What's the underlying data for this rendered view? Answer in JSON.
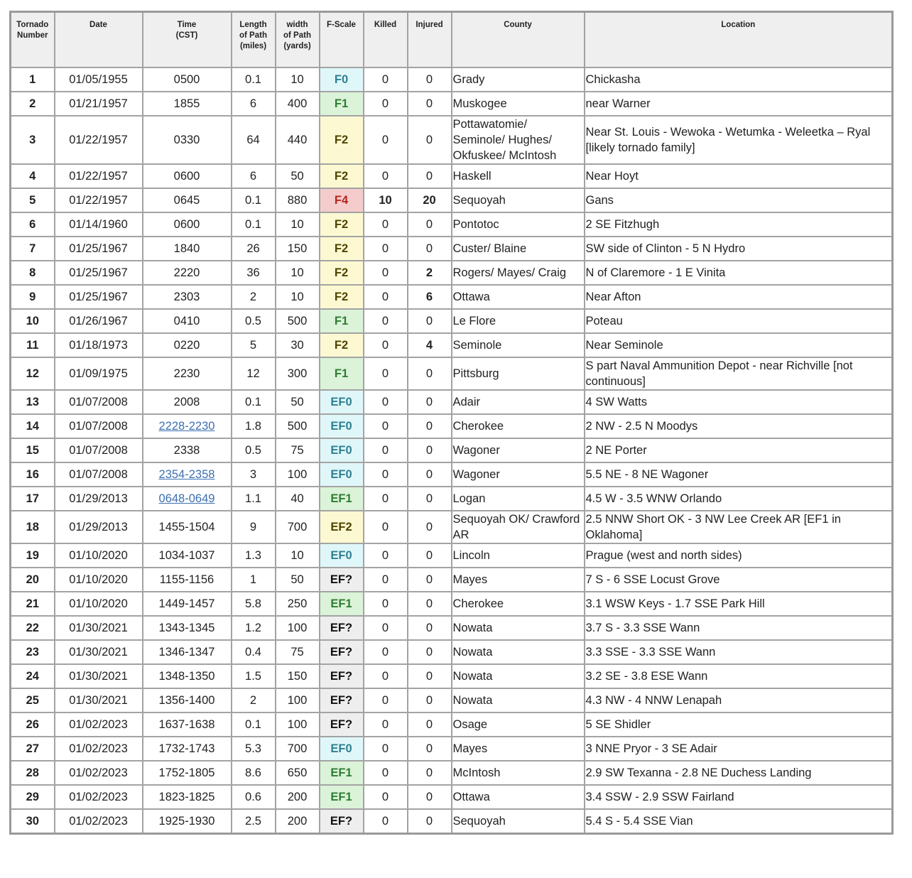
{
  "headers": [
    "Tornado Number",
    "Date",
    "Time (CST)",
    "Length of Path (miles)",
    "width of Path (yards)",
    "F-Scale",
    "Killed",
    "Injured",
    "County",
    "Location"
  ],
  "header_lines": [
    [
      "Tornado",
      "Number"
    ],
    [
      "Date"
    ],
    [
      "Time",
      "(CST)"
    ],
    [
      "Length",
      "of Path",
      "(miles)"
    ],
    [
      "width",
      "of Path",
      "(yards)"
    ],
    [
      "F-Scale"
    ],
    [
      "Killed"
    ],
    [
      "Injured"
    ],
    [
      "County"
    ],
    [
      "Location"
    ]
  ],
  "scale_colors": {
    "F0": {
      "bg": "#e0f7fa",
      "fg": "#2f8090"
    },
    "EF0": {
      "bg": "#e0f7fa",
      "fg": "#2f8090"
    },
    "F1": {
      "bg": "#dbf3d8",
      "fg": "#2e7d32"
    },
    "EF1": {
      "bg": "#dbf3d8",
      "fg": "#2e7d32"
    },
    "F2": {
      "bg": "#fcf9d2",
      "fg": "#4e4400"
    },
    "EF2": {
      "bg": "#fcf9d2",
      "fg": "#4e4400"
    },
    "F4": {
      "bg": "#f4cccc",
      "fg": "#b3261e"
    },
    "EF?": {
      "bg": "#eeeeee",
      "fg": "#111111"
    }
  },
  "rows": [
    {
      "n": "1",
      "date": "01/05/1955",
      "time": "0500",
      "len": "0.1",
      "width": "10",
      "scale": "F0",
      "killed": "0",
      "injured": "0",
      "county": "Grady",
      "location": "Chickasha"
    },
    {
      "n": "2",
      "date": "01/21/1957",
      "time": "1855",
      "len": "6",
      "width": "400",
      "scale": "F1",
      "killed": "0",
      "injured": "0",
      "county": "Muskogee",
      "location": "near Warner"
    },
    {
      "n": "3",
      "date": "01/22/1957",
      "time": "0330",
      "len": "64",
      "width": "440",
      "scale": "F2",
      "killed": "0",
      "injured": "0",
      "county": "Pottawatomie/ Seminole/ Hughes/ Okfuskee/ McIntosh",
      "location": "Near St. Louis - Wewoka - Wetumka - Weleetka – Ryal [likely tornado family]"
    },
    {
      "n": "4",
      "date": "01/22/1957",
      "time": "0600",
      "len": "6",
      "width": "50",
      "scale": "F2",
      "killed": "0",
      "injured": "0",
      "county": "Haskell",
      "location": "Near Hoyt"
    },
    {
      "n": "5",
      "date": "01/22/1957",
      "time": "0645",
      "len": "0.1",
      "width": "880",
      "scale": "F4",
      "killed": "10",
      "injured": "20",
      "county": "Sequoyah",
      "location": "Gans"
    },
    {
      "n": "6",
      "date": "01/14/1960",
      "time": "0600",
      "len": "0.1",
      "width": "10",
      "scale": "F2",
      "killed": "0",
      "injured": "0",
      "county": "Pontotoc",
      "location": "2 SE Fitzhugh"
    },
    {
      "n": "7",
      "date": "01/25/1967",
      "time": "1840",
      "len": "26",
      "width": "150",
      "scale": "F2",
      "killed": "0",
      "injured": "0",
      "county": "Custer/ Blaine",
      "location": "SW side of Clinton - 5 N Hydro"
    },
    {
      "n": "8",
      "date": "01/25/1967",
      "time": "2220",
      "len": "36",
      "width": "10",
      "scale": "F2",
      "killed": "0",
      "injured": "2",
      "county": "Rogers/ Mayes/ Craig",
      "location": "N of Claremore - 1 E Vinita"
    },
    {
      "n": "9",
      "date": "01/25/1967",
      "time": "2303",
      "len": "2",
      "width": "10",
      "scale": "F2",
      "killed": "0",
      "injured": "6",
      "county": "Ottawa",
      "location": "Near Afton"
    },
    {
      "n": "10",
      "date": "01/26/1967",
      "time": "0410",
      "len": "0.5",
      "width": "500",
      "scale": "F1",
      "killed": "0",
      "injured": "0",
      "county": "Le Flore",
      "location": "Poteau"
    },
    {
      "n": "11",
      "date": "01/18/1973",
      "time": "0220",
      "len": "5",
      "width": "30",
      "scale": "F2",
      "killed": "0",
      "injured": "4",
      "county": "Seminole",
      "location": "Near Seminole"
    },
    {
      "n": "12",
      "date": "01/09/1975",
      "time": "2230",
      "len": "12",
      "width": "300",
      "scale": "F1",
      "killed": "0",
      "injured": "0",
      "county": "Pittsburg",
      "location": "S part Naval Ammunition Depot - near Richville [not continuous]"
    },
    {
      "n": "13",
      "date": "01/07/2008",
      "time": "2008",
      "len": "0.1",
      "width": "50",
      "scale": "EF0",
      "killed": "0",
      "injured": "0",
      "county": "Adair",
      "location": "4 SW Watts"
    },
    {
      "n": "14",
      "date": "01/07/2008",
      "time": "2228-2230",
      "time_link": true,
      "len": "1.8",
      "width": "500",
      "scale": "EF0",
      "killed": "0",
      "injured": "0",
      "county": "Cherokee",
      "location": "2 NW - 2.5 N Moodys"
    },
    {
      "n": "15",
      "date": "01/07/2008",
      "time": "2338",
      "len": "0.5",
      "width": "75",
      "scale": "EF0",
      "killed": "0",
      "injured": "0",
      "county": "Wagoner",
      "location": "2 NE Porter"
    },
    {
      "n": "16",
      "date": "01/07/2008",
      "time": "2354-2358",
      "time_link": true,
      "len": "3",
      "width": "100",
      "scale": "EF0",
      "killed": "0",
      "injured": "0",
      "county": "Wagoner",
      "location": "5.5 NE - 8 NE Wagoner"
    },
    {
      "n": "17",
      "date": "01/29/2013",
      "time": "0648-0649",
      "time_link": true,
      "len": "1.1",
      "width": "40",
      "scale": "EF1",
      "killed": "0",
      "injured": "0",
      "county": "Logan",
      "location": "4.5 W - 3.5 WNW Orlando"
    },
    {
      "n": "18",
      "date": "01/29/2013",
      "time": "1455-1504",
      "len": "9",
      "width": "700",
      "scale": "EF2",
      "killed": "0",
      "injured": "0",
      "county": "Sequoyah OK/ Crawford AR",
      "location": "2.5 NNW Short OK - 3 NW Lee Creek AR [EF1 in Oklahoma]"
    },
    {
      "n": "19",
      "date": "01/10/2020",
      "time": "1034-1037",
      "len": "1.3",
      "width": "10",
      "scale": "EF0",
      "killed": "0",
      "injured": "0",
      "county": "Lincoln",
      "location": "Prague (west and north sides)"
    },
    {
      "n": "20",
      "date": "01/10/2020",
      "time": "1155-1156",
      "len": "1",
      "width": "50",
      "scale": "EF?",
      "killed": "0",
      "injured": "0",
      "county": "Mayes",
      "location": "7 S - 6 SSE Locust Grove"
    },
    {
      "n": "21",
      "date": "01/10/2020",
      "time": "1449-1457",
      "len": "5.8",
      "width": "250",
      "scale": "EF1",
      "killed": "0",
      "injured": "0",
      "county": "Cherokee",
      "location": "3.1 WSW Keys - 1.7 SSE Park Hill"
    },
    {
      "n": "22",
      "date": "01/30/2021",
      "time": "1343-1345",
      "len": "1.2",
      "width": "100",
      "scale": "EF?",
      "killed": "0",
      "injured": "0",
      "county": "Nowata",
      "location": "3.7 S - 3.3 SSE Wann"
    },
    {
      "n": "23",
      "date": "01/30/2021",
      "time": "1346-1347",
      "len": "0.4",
      "width": "75",
      "scale": "EF?",
      "killed": "0",
      "injured": "0",
      "county": "Nowata",
      "location": "3.3 SSE - 3.3 SSE Wann"
    },
    {
      "n": "24",
      "date": "01/30/2021",
      "time": "1348-1350",
      "len": "1.5",
      "width": "150",
      "scale": "EF?",
      "killed": "0",
      "injured": "0",
      "county": "Nowata",
      "location": "3.2 SE - 3.8 ESE Wann"
    },
    {
      "n": "25",
      "date": "01/30/2021",
      "time": "1356-1400",
      "len": "2",
      "width": "100",
      "scale": "EF?",
      "killed": "0",
      "injured": "0",
      "county": "Nowata",
      "location": "4.3 NW - 4 NNW Lenapah"
    },
    {
      "n": "26",
      "date": "01/02/2023",
      "time": "1637-1638",
      "len": "0.1",
      "width": "100",
      "scale": "EF?",
      "killed": "0",
      "injured": "0",
      "county": "Osage",
      "location": "5 SE Shidler"
    },
    {
      "n": "27",
      "date": "01/02/2023",
      "time": "1732-1743",
      "len": "5.3",
      "width": "700",
      "scale": "EF0",
      "killed": "0",
      "injured": "0",
      "county": "Mayes",
      "location": "3 NNE Pryor - 3 SE Adair"
    },
    {
      "n": "28",
      "date": "01/02/2023",
      "time": "1752-1805",
      "len": "8.6",
      "width": "650",
      "scale": "EF1",
      "killed": "0",
      "injured": "0",
      "county": "McIntosh",
      "location": "2.9 SW Texanna - 2.8 NE Duchess Landing"
    },
    {
      "n": "29",
      "date": "01/02/2023",
      "time": "1823-1825",
      "len": "0.6",
      "width": "200",
      "scale": "EF1",
      "killed": "0",
      "injured": "0",
      "county": "Ottawa",
      "location": "3.4 SSW - 2.9 SSW Fairland"
    },
    {
      "n": "30",
      "date": "01/02/2023",
      "time": "1925-1930",
      "len": "2.5",
      "width": "200",
      "scale": "EF?",
      "killed": "0",
      "injured": "0",
      "county": "Sequoyah",
      "location": "5.4 S - 5.4 SSE Vian"
    }
  ]
}
